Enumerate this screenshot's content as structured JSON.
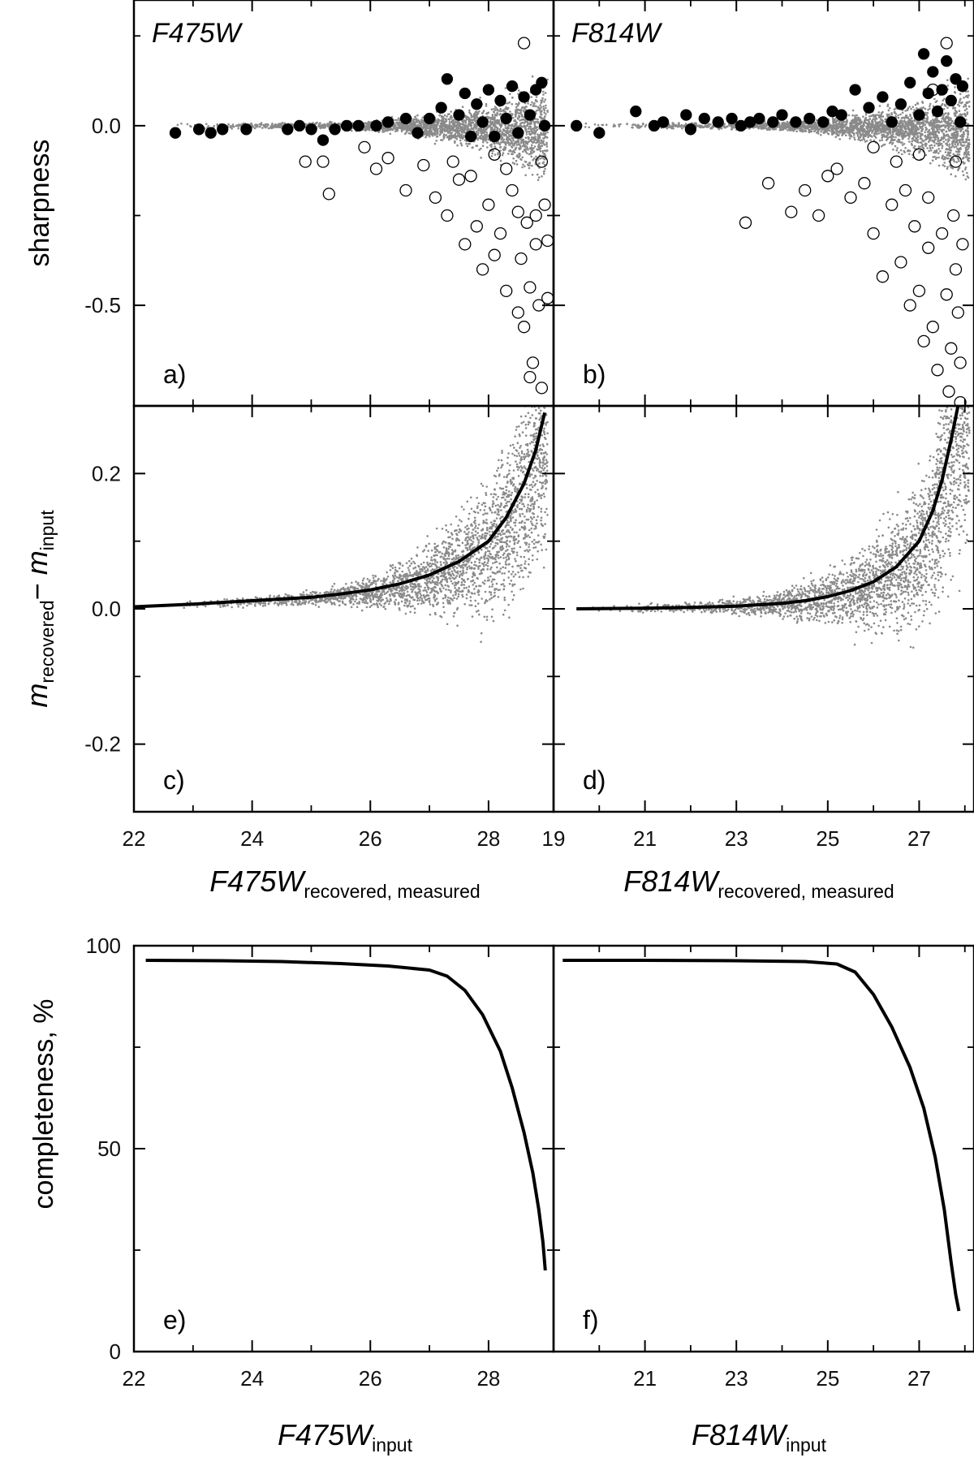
{
  "colors": {
    "sim": "#8a8a8a",
    "frame": "#000000",
    "curve": "#000000"
  },
  "chart_data": [
    {
      "id": "a",
      "panel_label": "a)",
      "filter_label": "F475W",
      "type": "scatter",
      "ylabel": "sharpness",
      "xlim": [
        22,
        29.1
      ],
      "ylim": [
        -0.78,
        0.35
      ],
      "yticks": [
        0.0,
        -0.5
      ],
      "ytick_labels": [
        "0.0",
        "-0.5"
      ],
      "ytick_minor": [
        0.25,
        -0.25
      ],
      "series": [
        {
          "style": "gray-dots"
        },
        {
          "style": "filled-circles",
          "points": [
            [
              22.7,
              -0.02
            ],
            [
              23.1,
              -0.01
            ],
            [
              23.3,
              -0.02
            ],
            [
              23.5,
              -0.01
            ],
            [
              23.9,
              -0.01
            ],
            [
              24.6,
              -0.01
            ],
            [
              24.8,
              0.0
            ],
            [
              25.0,
              -0.01
            ],
            [
              25.2,
              -0.04
            ],
            [
              25.4,
              -0.01
            ],
            [
              25.6,
              0.0
            ],
            [
              25.8,
              0.0
            ],
            [
              26.1,
              0.0
            ],
            [
              26.3,
              0.01
            ],
            [
              26.6,
              0.02
            ],
            [
              26.8,
              -0.02
            ],
            [
              27.0,
              0.02
            ],
            [
              27.2,
              0.05
            ],
            [
              27.3,
              0.13
            ],
            [
              27.5,
              0.03
            ],
            [
              27.6,
              0.09
            ],
            [
              27.7,
              -0.03
            ],
            [
              27.8,
              0.06
            ],
            [
              27.9,
              0.01
            ],
            [
              28.0,
              0.1
            ],
            [
              28.1,
              -0.03
            ],
            [
              28.2,
              0.07
            ],
            [
              28.3,
              0.02
            ],
            [
              28.4,
              0.11
            ],
            [
              28.5,
              -0.02
            ],
            [
              28.6,
              0.08
            ],
            [
              28.7,
              0.03
            ],
            [
              28.8,
              0.1
            ],
            [
              28.9,
              0.12
            ],
            [
              28.95,
              0.0
            ]
          ]
        },
        {
          "style": "open-circles",
          "points": [
            [
              24.9,
              -0.1
            ],
            [
              25.2,
              -0.1
            ],
            [
              25.3,
              -0.19
            ],
            [
              25.9,
              -0.06
            ],
            [
              26.1,
              -0.12
            ],
            [
              26.3,
              -0.09
            ],
            [
              26.6,
              -0.18
            ],
            [
              26.9,
              -0.11
            ],
            [
              27.1,
              -0.2
            ],
            [
              27.3,
              -0.25
            ],
            [
              27.5,
              -0.15
            ],
            [
              27.6,
              -0.33
            ],
            [
              27.8,
              -0.28
            ],
            [
              27.9,
              -0.4
            ],
            [
              28.0,
              -0.22
            ],
            [
              28.1,
              -0.36
            ],
            [
              28.2,
              -0.3
            ],
            [
              28.3,
              -0.46
            ],
            [
              28.4,
              -0.18
            ],
            [
              28.5,
              -0.52
            ],
            [
              28.55,
              -0.37
            ],
            [
              28.6,
              -0.56
            ],
            [
              28.65,
              -0.27
            ],
            [
              28.7,
              -0.45
            ],
            [
              28.75,
              -0.66
            ],
            [
              28.8,
              -0.33
            ],
            [
              28.85,
              -0.5
            ],
            [
              28.9,
              -0.73
            ],
            [
              28.95,
              -0.22
            ],
            [
              29.0,
              -0.48
            ],
            [
              28.7,
              -0.7
            ],
            [
              28.6,
              0.23
            ],
            [
              28.3,
              -0.12
            ],
            [
              28.1,
              -0.08
            ],
            [
              27.7,
              -0.14
            ],
            [
              28.8,
              -0.25
            ],
            [
              29.0,
              -0.32
            ],
            [
              28.5,
              -0.24
            ],
            [
              27.4,
              -0.1
            ],
            [
              28.9,
              -0.1
            ]
          ]
        }
      ]
    },
    {
      "id": "b",
      "panel_label": "b)",
      "filter_label": "F814W",
      "type": "scatter",
      "xlim": [
        19,
        28.2
      ],
      "ylim": [
        -0.78,
        0.35
      ],
      "yticks": [
        0.0,
        -0.5
      ],
      "ytick_minor": [
        0.25,
        -0.25
      ],
      "series": [
        {
          "style": "gray-dots"
        },
        {
          "style": "filled-circles",
          "points": [
            [
              19.5,
              0.0
            ],
            [
              20.0,
              -0.02
            ],
            [
              20.8,
              0.04
            ],
            [
              21.2,
              0.0
            ],
            [
              21.4,
              0.01
            ],
            [
              21.9,
              0.03
            ],
            [
              22.0,
              -0.01
            ],
            [
              22.3,
              0.02
            ],
            [
              22.6,
              0.01
            ],
            [
              22.9,
              0.02
            ],
            [
              23.1,
              0.0
            ],
            [
              23.3,
              0.01
            ],
            [
              23.5,
              0.02
            ],
            [
              23.8,
              0.01
            ],
            [
              24.0,
              0.03
            ],
            [
              24.3,
              0.01
            ],
            [
              24.6,
              0.02
            ],
            [
              24.9,
              0.01
            ],
            [
              25.1,
              0.04
            ],
            [
              25.3,
              0.03
            ],
            [
              25.6,
              0.1
            ],
            [
              25.9,
              0.05
            ],
            [
              26.2,
              0.08
            ],
            [
              26.4,
              0.01
            ],
            [
              26.6,
              0.06
            ],
            [
              26.8,
              0.12
            ],
            [
              27.0,
              0.03
            ],
            [
              27.1,
              0.2
            ],
            [
              27.2,
              0.09
            ],
            [
              27.3,
              0.15
            ],
            [
              27.4,
              0.04
            ],
            [
              27.5,
              0.1
            ],
            [
              27.6,
              0.18
            ],
            [
              27.7,
              0.07
            ],
            [
              27.8,
              0.13
            ],
            [
              27.9,
              0.01
            ],
            [
              27.95,
              0.11
            ]
          ]
        },
        {
          "style": "open-circles",
          "points": [
            [
              23.2,
              -0.27
            ],
            [
              23.7,
              -0.16
            ],
            [
              24.2,
              -0.24
            ],
            [
              24.5,
              -0.18
            ],
            [
              24.8,
              -0.25
            ],
            [
              25.0,
              -0.14
            ],
            [
              25.2,
              -0.12
            ],
            [
              25.5,
              -0.2
            ],
            [
              25.8,
              -0.16
            ],
            [
              26.0,
              -0.3
            ],
            [
              26.2,
              -0.42
            ],
            [
              26.4,
              -0.22
            ],
            [
              26.6,
              -0.38
            ],
            [
              26.8,
              -0.5
            ],
            [
              26.9,
              -0.28
            ],
            [
              27.0,
              -0.46
            ],
            [
              27.1,
              -0.6
            ],
            [
              27.2,
              -0.34
            ],
            [
              27.3,
              -0.56
            ],
            [
              27.4,
              -0.68
            ],
            [
              27.5,
              -0.3
            ],
            [
              27.6,
              -0.47
            ],
            [
              27.65,
              -0.74
            ],
            [
              27.7,
              -0.62
            ],
            [
              27.75,
              -0.25
            ],
            [
              27.8,
              -0.4
            ],
            [
              27.85,
              -0.52
            ],
            [
              27.9,
              -0.66
            ],
            [
              27.95,
              -0.33
            ],
            [
              27.6,
              0.23
            ],
            [
              27.3,
              0.1
            ],
            [
              26.5,
              -0.1
            ],
            [
              27.0,
              -0.08
            ],
            [
              26.0,
              -0.06
            ],
            [
              27.9,
              -0.77
            ],
            [
              27.2,
              -0.2
            ],
            [
              26.7,
              -0.18
            ],
            [
              27.8,
              -0.1
            ]
          ]
        }
      ]
    },
    {
      "id": "c",
      "panel_label": "c)",
      "type": "scatter",
      "ylabel_parts": {
        "m1": "m",
        "sub1": "recovered",
        "dash": "− ",
        "m2": "m",
        "sub2": "input"
      },
      "xlabel_parts": {
        "main": "F475W",
        "sub": "recovered, measured"
      },
      "xlim": [
        22,
        29.1
      ],
      "ylim": [
        -0.3,
        0.3
      ],
      "xticks": [
        22,
        24,
        26,
        28
      ],
      "xtick_labels": [
        "22",
        "24",
        "26",
        "28"
      ],
      "xtick_minor": [
        23,
        25,
        27
      ],
      "yticks": [
        0.2,
        0.0,
        -0.2
      ],
      "ytick_labels": [
        "0.2",
        "0.0",
        "-0.2"
      ],
      "ytick_minor": [
        0.1,
        -0.1
      ],
      "series": [
        {
          "style": "gray-dots"
        },
        {
          "style": "line",
          "x": [
            22.0,
            23.0,
            24.0,
            25.0,
            25.5,
            26.0,
            26.5,
            27.0,
            27.5,
            28.0,
            28.3,
            28.6,
            28.8,
            28.95
          ],
          "y": [
            0.003,
            0.007,
            0.012,
            0.017,
            0.022,
            0.028,
            0.037,
            0.05,
            0.07,
            0.1,
            0.135,
            0.185,
            0.235,
            0.29
          ]
        }
      ]
    },
    {
      "id": "d",
      "panel_label": "d)",
      "type": "scatter",
      "xlabel_parts": {
        "main": "F814W",
        "sub": "recovered, measured"
      },
      "xlim": [
        19,
        28.2
      ],
      "ylim": [
        -0.3,
        0.3
      ],
      "xticks": [
        19,
        21,
        23,
        25,
        27
      ],
      "xtick_labels": [
        "19",
        "21",
        "23",
        "25",
        "27"
      ],
      "xtick_minor": [
        20,
        22,
        24,
        26,
        28
      ],
      "yticks": [
        0.2,
        0.0,
        -0.2
      ],
      "ytick_minor": [
        0.1,
        -0.1
      ],
      "series": [
        {
          "style": "gray-dots"
        },
        {
          "style": "line",
          "x": [
            19.5,
            21.0,
            22.0,
            23.0,
            24.0,
            24.5,
            25.0,
            25.5,
            26.0,
            26.5,
            27.0,
            27.3,
            27.5,
            27.7,
            27.85
          ],
          "y": [
            0.0,
            0.001,
            0.002,
            0.004,
            0.008,
            0.012,
            0.018,
            0.027,
            0.04,
            0.062,
            0.1,
            0.145,
            0.19,
            0.25,
            0.3
          ]
        }
      ]
    },
    {
      "id": "e",
      "panel_label": "e)",
      "type": "line",
      "ylabel": "completeness, %",
      "xlabel_parts": {
        "main": "F475W",
        "sub": "input"
      },
      "xlim": [
        22,
        29.1
      ],
      "ylim": [
        0,
        100
      ],
      "xticks": [
        22,
        24,
        26,
        28
      ],
      "xtick_labels": [
        "22",
        "24",
        "26",
        "28"
      ],
      "xtick_minor": [
        23,
        25,
        27
      ],
      "yticks": [
        100,
        50,
        0
      ],
      "ytick_labels": [
        "100",
        "50",
        "0"
      ],
      "ytick_minor": [
        75,
        25
      ],
      "series": [
        {
          "style": "line",
          "x": [
            22.2,
            23.5,
            24.5,
            25.5,
            26.3,
            27.0,
            27.3,
            27.6,
            27.9,
            28.2,
            28.4,
            28.6,
            28.75,
            28.85,
            28.92,
            28.96
          ],
          "y": [
            96.4,
            96.3,
            96.1,
            95.6,
            95.0,
            94.0,
            92.5,
            89.0,
            83.0,
            74.0,
            65.0,
            54.0,
            44.0,
            35.0,
            27.0,
            20.0
          ]
        }
      ]
    },
    {
      "id": "f",
      "panel_label": "f)",
      "type": "line",
      "xlabel_parts": {
        "main": "F814W",
        "sub": "input"
      },
      "xlim": [
        19,
        28.2
      ],
      "ylim": [
        0,
        100
      ],
      "xticks": [
        21,
        23,
        25,
        27
      ],
      "xtick_labels": [
        "21",
        "23",
        "25",
        "27"
      ],
      "xtick_minor": [
        20,
        22,
        24,
        26,
        28
      ],
      "yticks": [
        100,
        50,
        0
      ],
      "ytick_minor": [
        75,
        25
      ],
      "series": [
        {
          "style": "line",
          "x": [
            19.2,
            21.0,
            23.0,
            24.5,
            25.2,
            25.6,
            26.0,
            26.4,
            26.8,
            27.1,
            27.35,
            27.55,
            27.7,
            27.8,
            27.87
          ],
          "y": [
            96.4,
            96.4,
            96.3,
            96.1,
            95.5,
            93.5,
            88.0,
            80.0,
            70.0,
            60.0,
            48.0,
            35.0,
            22.0,
            14.0,
            10.0
          ]
        }
      ]
    }
  ]
}
